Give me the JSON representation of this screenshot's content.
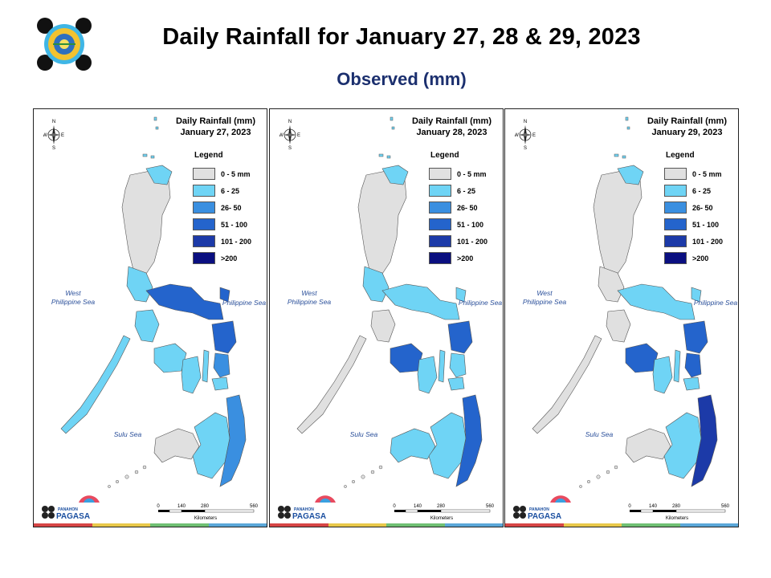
{
  "header": {
    "title": "Daily Rainfall for January 27, 28 & 29, 2023",
    "subtitle": "Observed (mm)"
  },
  "legend": {
    "title": "Legend",
    "classes": [
      {
        "label": "0 - 5 mm",
        "color": "#e0e0e0"
      },
      {
        "label": "6 - 25",
        "color": "#6fd4f5"
      },
      {
        "label": "26- 50",
        "color": "#3a8fe0"
      },
      {
        "label": "51 - 100",
        "color": "#2464cc"
      },
      {
        "label": "101 - 200",
        "color": "#1c3aa8"
      },
      {
        "label": ">200",
        "color": "#0a0f80"
      }
    ]
  },
  "panels": [
    {
      "title_line1": "Daily Rainfall (mm)",
      "title_line2": "January 27, 2023"
    },
    {
      "title_line1": "Daily Rainfall (mm)",
      "title_line2": "January 28, 2023"
    },
    {
      "title_line1": "Daily Rainfall (mm)",
      "title_line2": "January 29, 2023"
    }
  ],
  "map_labels": {
    "west_sea_line1": "West",
    "west_sea_line2": "Philippine Sea",
    "east_sea": "Philippine Sea",
    "sulu_sea": "Sulu Sea",
    "compass": {
      "n": "N",
      "s": "S",
      "e": "E",
      "w": "W"
    }
  },
  "scale": {
    "ticks": [
      "0",
      "140",
      "280",
      "560"
    ],
    "unit": "Kilometers"
  },
  "branding": {
    "panel_logo_text": "PAGASA",
    "panel_logo_small": "PANAHON",
    "stripe_colors": [
      "#d64545",
      "#e8c84a",
      "#6fbf73",
      "#5aa7d8"
    ]
  }
}
